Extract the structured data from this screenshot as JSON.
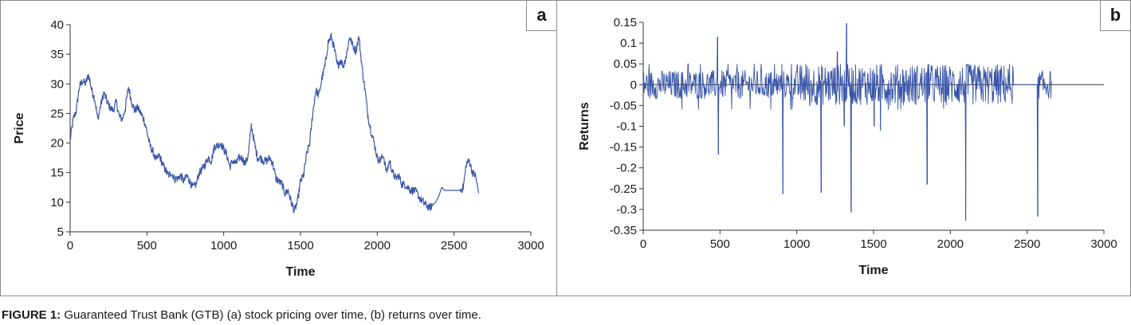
{
  "caption": {
    "label": "FIGURE 1:",
    "text": " Guaranteed Trust Bank (GTB) (a) stock pricing over time, (b) returns over time."
  },
  "chart_data": [
    {
      "panel_label": "a",
      "type": "line",
      "xlabel": "Time",
      "ylabel": "Price",
      "xlim": [
        0,
        3000
      ],
      "ylim": [
        5,
        40
      ],
      "xticks": [
        0,
        500,
        1000,
        1500,
        2000,
        2500,
        3000
      ],
      "yticks": [
        5,
        10,
        15,
        20,
        25,
        30,
        35,
        40
      ],
      "grid": false,
      "color": "#3a56a8",
      "series": [
        {
          "x": [
            0,
            20,
            40,
            60,
            80,
            100,
            120,
            140,
            160,
            180,
            200,
            220,
            240,
            260,
            280,
            300,
            320,
            340,
            360,
            380,
            400,
            420,
            440,
            460,
            480,
            500,
            520,
            540,
            560,
            580,
            600,
            620,
            640,
            660,
            680,
            700,
            720,
            740,
            760,
            780,
            800,
            820,
            840,
            860,
            880,
            900,
            920,
            940,
            960,
            980,
            1000,
            1020,
            1040,
            1060,
            1080,
            1100,
            1120,
            1140,
            1160,
            1180,
            1200,
            1220,
            1240,
            1260,
            1280,
            1300,
            1320,
            1340,
            1360,
            1380,
            1400,
            1420,
            1440,
            1460,
            1480,
            1500,
            1520,
            1540,
            1560,
            1580,
            1600,
            1620,
            1640,
            1660,
            1680,
            1700,
            1720,
            1740,
            1760,
            1780,
            1800,
            1820,
            1840,
            1860,
            1880,
            1900,
            1920,
            1940,
            1960,
            1980,
            2000,
            2020,
            2040,
            2060,
            2080,
            2100,
            2120,
            2140,
            2160,
            2180,
            2200,
            2220,
            2240,
            2260,
            2280,
            2300,
            2320,
            2340,
            2360,
            2380,
            2400,
            2420,
            2440,
            2460,
            2480,
            2500,
            2520,
            2540,
            2560,
            2580,
            2600,
            2620,
            2640,
            2660
          ],
          "y": [
            20.5,
            24,
            25.5,
            29.5,
            30.5,
            30,
            31.5,
            29,
            27.5,
            24,
            26.5,
            28.5,
            27,
            26,
            25.5,
            27,
            24.5,
            24,
            26,
            29.5,
            27,
            25.5,
            26,
            25,
            24,
            22,
            19.5,
            18.5,
            17,
            18,
            16.5,
            15.5,
            14.5,
            15,
            14,
            14,
            14.5,
            13.5,
            14.5,
            13.5,
            12.5,
            13,
            15,
            15.5,
            16.5,
            17.5,
            17,
            19.5,
            19.5,
            20,
            19,
            18,
            16,
            17,
            16.5,
            17.5,
            17.5,
            16.5,
            18,
            23,
            20,
            17.5,
            17.5,
            17,
            17,
            17.5,
            16.5,
            14,
            13.5,
            13,
            11.5,
            12,
            10,
            8.5,
            10,
            13.5,
            14.5,
            18,
            20,
            25,
            29,
            28,
            31,
            33,
            37,
            38,
            36,
            33,
            34,
            33,
            35,
            38,
            36.5,
            35.5,
            38,
            33,
            29,
            24.5,
            22,
            20,
            17.5,
            17,
            18,
            15,
            17,
            15,
            14,
            14.5,
            13,
            13,
            12.5,
            12,
            12,
            11.5,
            10.5,
            10,
            9.5,
            9,
            9.5,
            10,
            11,
            12.5,
            12,
            12,
            12,
            12,
            12,
            12,
            12.5,
            16.5,
            17,
            15,
            14.5,
            11.5
          ]
        }
      ]
    },
    {
      "panel_label": "b",
      "type": "line",
      "xlabel": "Time",
      "ylabel": "Returns",
      "xlim": [
        0,
        3000
      ],
      "ylim": [
        -0.35,
        0.15
      ],
      "xticks": [
        0,
        500,
        1000,
        1500,
        2000,
        2500,
        3000
      ],
      "yticks": [
        0.15,
        0.1,
        0.05,
        0,
        -0.05,
        -0.1,
        -0.15,
        -0.2,
        -0.25,
        -0.3,
        -0.35
      ],
      "grid": false,
      "color": "#3a56a8",
      "spikes": [
        {
          "x": 490,
          "y": -0.168
        },
        {
          "x": 485,
          "y": 0.115
        },
        {
          "x": 910,
          "y": -0.263
        },
        {
          "x": 1160,
          "y": -0.26
        },
        {
          "x": 1265,
          "y": 0.08
        },
        {
          "x": 1310,
          "y": -0.1
        },
        {
          "x": 1325,
          "y": 0.148
        },
        {
          "x": 1355,
          "y": -0.307
        },
        {
          "x": 1505,
          "y": -0.1
        },
        {
          "x": 1545,
          "y": -0.11
        },
        {
          "x": 1850,
          "y": -0.24
        },
        {
          "x": 2100,
          "y": -0.327
        },
        {
          "x": 2570,
          "y": -0.317
        }
      ]
    }
  ]
}
